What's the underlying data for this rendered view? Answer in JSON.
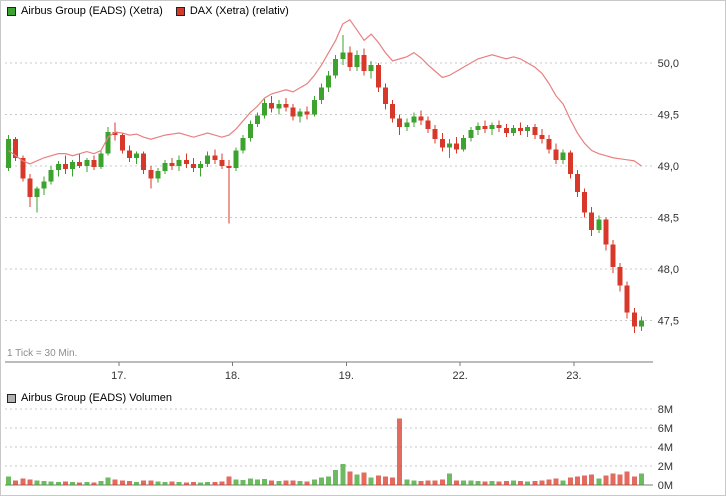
{
  "colors": {
    "up": "#3da32f",
    "down": "#d8382a",
    "dax_line": "#e98080",
    "grid": "#c8c8c8",
    "axis": "#7a7a7a",
    "label": "#333333",
    "volume_swatch": "#b0b0b0"
  },
  "chart_data": [
    {
      "type": "candlestick",
      "title": "Airbus Group (EADS) (Xetra) with DAX (Xetra) (relativ) overlay, 30-minute ticks",
      "legend": {
        "airbus": "Airbus Group (EADS) (Xetra)",
        "dax": "DAX (Xetra) (relativ)"
      },
      "note": "1 Tick = 30 Min.",
      "x_axis": {
        "tick_labels": [
          "17.",
          "18.",
          "19.",
          "22.",
          "23."
        ],
        "tick_candle_index": [
          16,
          32,
          48,
          64,
          80
        ]
      },
      "y_axis": {
        "ticks": [
          {
            "v": 50.0,
            "label": "50,0"
          },
          {
            "v": 49.5,
            "label": "49,5"
          },
          {
            "v": 49.0,
            "label": "49,0"
          },
          {
            "v": 48.5,
            "label": "48,5"
          },
          {
            "v": 48.0,
            "label": "48,0"
          },
          {
            "v": 47.5,
            "label": "47,5"
          }
        ],
        "range": [
          47.1,
          50.55
        ]
      },
      "candles_ohlc": [
        [
          48.98,
          49.3,
          48.95,
          49.26
        ],
        [
          49.26,
          49.28,
          49.05,
          49.08
        ],
        [
          49.08,
          49.1,
          48.85,
          48.88
        ],
        [
          48.88,
          48.92,
          48.6,
          48.7
        ],
        [
          48.7,
          48.8,
          48.55,
          48.78
        ],
        [
          48.78,
          48.9,
          48.72,
          48.85
        ],
        [
          48.85,
          49.0,
          48.82,
          48.96
        ],
        [
          48.96,
          49.05,
          48.9,
          49.02
        ],
        [
          49.02,
          49.1,
          48.92,
          48.97
        ],
        [
          48.97,
          49.06,
          48.9,
          49.04
        ],
        [
          49.04,
          49.12,
          48.98,
          49.0
        ],
        [
          49.0,
          49.08,
          48.94,
          49.06
        ],
        [
          49.06,
          49.1,
          48.96,
          48.99
        ],
        [
          48.99,
          49.15,
          48.97,
          49.12
        ],
        [
          49.12,
          49.38,
          49.1,
          49.33
        ],
        [
          49.33,
          49.42,
          49.25,
          49.3
        ],
        [
          49.3,
          49.32,
          49.12,
          49.15
        ],
        [
          49.15,
          49.2,
          49.04,
          49.08
        ],
        [
          49.08,
          49.14,
          49.02,
          49.12
        ],
        [
          49.12,
          49.14,
          48.92,
          48.96
        ],
        [
          48.96,
          49.0,
          48.78,
          48.88
        ],
        [
          48.88,
          48.98,
          48.84,
          48.95
        ],
        [
          48.95,
          49.06,
          48.92,
          49.03
        ],
        [
          49.03,
          49.08,
          48.96,
          49.0
        ],
        [
          49.0,
          49.1,
          48.95,
          49.06
        ],
        [
          49.06,
          49.12,
          48.98,
          49.02
        ],
        [
          49.02,
          49.08,
          48.94,
          48.98
        ],
        [
          48.98,
          49.05,
          48.9,
          49.02
        ],
        [
          49.02,
          49.14,
          48.99,
          49.1
        ],
        [
          49.1,
          49.16,
          49.02,
          49.06
        ],
        [
          49.06,
          49.12,
          48.97,
          49.0
        ],
        [
          49.0,
          49.06,
          48.44,
          48.98
        ],
        [
          48.98,
          49.18,
          48.95,
          49.15
        ],
        [
          49.15,
          49.3,
          49.12,
          49.27
        ],
        [
          49.27,
          49.44,
          49.24,
          49.41
        ],
        [
          49.41,
          49.52,
          49.38,
          49.49
        ],
        [
          49.49,
          49.65,
          49.46,
          49.61
        ],
        [
          49.61,
          49.68,
          49.52,
          49.56
        ],
        [
          49.56,
          49.64,
          49.5,
          49.6
        ],
        [
          49.6,
          49.66,
          49.53,
          49.57
        ],
        [
          49.57,
          49.6,
          49.44,
          49.48
        ],
        [
          49.48,
          49.56,
          49.42,
          49.53
        ],
        [
          49.53,
          49.58,
          49.45,
          49.5
        ],
        [
          49.5,
          49.68,
          49.48,
          49.64
        ],
        [
          49.64,
          49.8,
          49.6,
          49.76
        ],
        [
          49.76,
          49.92,
          49.72,
          49.88
        ],
        [
          49.88,
          50.08,
          49.85,
          50.04
        ],
        [
          50.04,
          50.27,
          49.98,
          50.1
        ],
        [
          50.1,
          50.16,
          49.92,
          49.96
        ],
        [
          49.96,
          50.12,
          49.92,
          50.08
        ],
        [
          50.08,
          50.14,
          49.88,
          49.92
        ],
        [
          49.92,
          50.02,
          49.85,
          49.98
        ],
        [
          49.98,
          50.0,
          49.72,
          49.76
        ],
        [
          49.76,
          49.8,
          49.55,
          49.6
        ],
        [
          49.6,
          49.64,
          49.42,
          49.46
        ],
        [
          49.46,
          49.5,
          49.3,
          49.38
        ],
        [
          49.38,
          49.46,
          49.34,
          49.42
        ],
        [
          49.42,
          49.52,
          49.38,
          49.48
        ],
        [
          49.48,
          49.54,
          49.4,
          49.44
        ],
        [
          49.44,
          49.48,
          49.32,
          49.36
        ],
        [
          49.36,
          49.4,
          49.22,
          49.26
        ],
        [
          49.26,
          49.32,
          49.14,
          49.18
        ],
        [
          49.18,
          49.26,
          49.08,
          49.22
        ],
        [
          49.22,
          49.28,
          49.12,
          49.16
        ],
        [
          49.16,
          49.3,
          49.14,
          49.27
        ],
        [
          49.27,
          49.38,
          49.24,
          49.35
        ],
        [
          49.35,
          49.42,
          49.3,
          49.39
        ],
        [
          49.39,
          49.44,
          49.32,
          49.36
        ],
        [
          49.36,
          49.42,
          49.3,
          49.4
        ],
        [
          49.4,
          49.44,
          49.33,
          49.37
        ],
        [
          49.37,
          49.41,
          49.28,
          49.32
        ],
        [
          49.32,
          49.4,
          49.29,
          49.37
        ],
        [
          49.37,
          49.42,
          49.3,
          49.34
        ],
        [
          49.34,
          49.4,
          49.28,
          49.38
        ],
        [
          49.38,
          49.41,
          49.26,
          49.3
        ],
        [
          49.3,
          49.36,
          49.22,
          49.26
        ],
        [
          49.26,
          49.3,
          49.12,
          49.16
        ],
        [
          49.16,
          49.22,
          49.02,
          49.06
        ],
        [
          49.06,
          49.16,
          49.02,
          49.13
        ],
        [
          49.13,
          49.15,
          48.88,
          48.92
        ],
        [
          48.92,
          48.96,
          48.7,
          48.75
        ],
        [
          48.75,
          48.78,
          48.5,
          48.55
        ],
        [
          48.55,
          48.6,
          48.32,
          48.38
        ],
        [
          48.38,
          48.52,
          48.35,
          48.48
        ],
        [
          48.48,
          48.5,
          48.18,
          48.24
        ],
        [
          48.24,
          48.28,
          47.96,
          48.02
        ],
        [
          48.02,
          48.06,
          47.78,
          47.84
        ],
        [
          47.84,
          47.88,
          47.52,
          47.58
        ],
        [
          47.58,
          47.62,
          47.38,
          47.44
        ],
        [
          47.44,
          47.54,
          47.4,
          47.5
        ]
      ],
      "dax_relative_line": [
        49.15,
        49.1,
        49.05,
        49.02,
        49.05,
        49.08,
        49.1,
        49.12,
        49.12,
        49.1,
        49.12,
        49.14,
        49.12,
        49.15,
        49.28,
        49.33,
        49.32,
        49.3,
        49.31,
        49.28,
        49.26,
        49.28,
        49.3,
        49.31,
        49.32,
        49.3,
        49.28,
        49.3,
        49.32,
        49.3,
        49.28,
        49.3,
        49.36,
        49.44,
        49.52,
        49.58,
        49.66,
        49.7,
        49.72,
        49.74,
        49.72,
        49.76,
        49.8,
        49.88,
        49.98,
        50.1,
        50.22,
        50.38,
        50.42,
        50.32,
        50.22,
        50.28,
        50.2,
        50.1,
        50.02,
        50.04,
        50.06,
        50.1,
        50.05,
        49.98,
        49.92,
        49.86,
        49.88,
        49.92,
        49.96,
        50.0,
        50.04,
        50.06,
        50.08,
        50.06,
        50.04,
        50.06,
        50.04,
        50.0,
        49.96,
        49.9,
        49.8,
        49.68,
        49.6,
        49.45,
        49.32,
        49.22,
        49.15,
        49.12,
        49.1,
        49.08,
        49.07,
        49.06,
        49.05,
        49.0
      ]
    },
    {
      "type": "bar",
      "title": "Airbus Group (EADS) Volumen",
      "unit": "M",
      "y_axis": {
        "ticks": [
          {
            "v": 8,
            "label": "8M"
          },
          {
            "v": 6,
            "label": "6M"
          },
          {
            "v": 4,
            "label": "4M"
          },
          {
            "v": 2,
            "label": "2M"
          },
          {
            "v": 0,
            "label": "0M"
          }
        ],
        "range": [
          0,
          8
        ]
      },
      "values": [
        0.9,
        0.5,
        0.7,
        0.6,
        0.5,
        0.4,
        0.35,
        0.3,
        0.35,
        0.3,
        0.25,
        0.3,
        0.25,
        0.4,
        0.8,
        0.6,
        0.5,
        0.4,
        0.3,
        0.45,
        0.5,
        0.35,
        0.3,
        0.35,
        0.3,
        0.25,
        0.3,
        0.25,
        0.3,
        0.3,
        0.35,
        0.9,
        0.6,
        0.55,
        0.7,
        0.6,
        0.65,
        0.5,
        0.4,
        0.45,
        0.5,
        0.4,
        0.35,
        0.6,
        0.8,
        0.9,
        1.6,
        2.2,
        1.4,
        1.1,
        1.3,
        0.8,
        1.0,
        0.9,
        0.8,
        7.0,
        0.6,
        0.5,
        0.4,
        0.45,
        0.5,
        0.6,
        1.2,
        0.5,
        0.45,
        0.5,
        0.4,
        0.35,
        0.4,
        0.35,
        0.4,
        0.45,
        0.4,
        0.35,
        0.4,
        0.45,
        0.6,
        0.7,
        0.5,
        0.8,
        0.9,
        1.0,
        1.1,
        0.7,
        1.0,
        1.2,
        1.1,
        1.4,
        0.9,
        1.2
      ]
    }
  ]
}
